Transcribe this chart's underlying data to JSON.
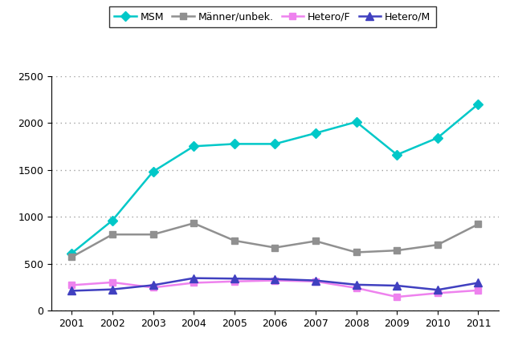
{
  "years": [
    2001,
    2002,
    2003,
    2004,
    2005,
    2006,
    2007,
    2008,
    2009,
    2010,
    2011
  ],
  "MSM": [
    610,
    960,
    1480,
    1750,
    1775,
    1775,
    1890,
    2010,
    1660,
    1840,
    2200
  ],
  "Maenner_unbek": [
    570,
    810,
    810,
    930,
    745,
    670,
    740,
    620,
    640,
    700,
    920
  ],
  "Hetero_F": [
    270,
    300,
    245,
    295,
    310,
    320,
    310,
    240,
    145,
    185,
    215
  ],
  "Hetero_M": [
    210,
    225,
    270,
    345,
    340,
    335,
    320,
    275,
    265,
    220,
    295
  ],
  "series_labels": [
    "MSM",
    "Männer/unbek.",
    "Hetero/F",
    "Hetero/M"
  ],
  "colors": [
    "#00C8C8",
    "#909090",
    "#EE82EE",
    "#4040C0"
  ],
  "markers": [
    "D",
    "s",
    "s",
    "^"
  ],
  "marker_sizes": [
    6,
    6,
    6,
    7
  ],
  "linewidth": 1.8,
  "ylim": [
    0,
    2500
  ],
  "yticks": [
    0,
    500,
    1000,
    1500,
    2000,
    2500
  ],
  "background_color": "#ffffff",
  "grid_color": "#a0a0a0",
  "legend_fontsize": 9,
  "tick_fontsize": 9
}
